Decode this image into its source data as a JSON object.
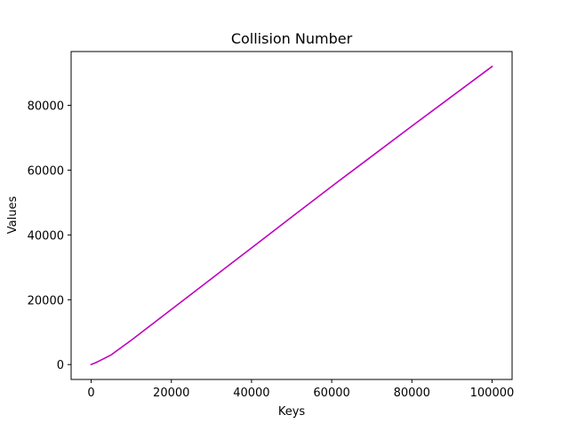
{
  "chart_data": {
    "type": "line",
    "title": "Collision Number",
    "xlabel": "Keys",
    "ylabel": "Values",
    "xlim": [
      -5000,
      105000
    ],
    "ylim": [
      -4600,
      96600
    ],
    "grid": false,
    "x_ticks": [
      0,
      20000,
      40000,
      60000,
      80000,
      100000
    ],
    "x_tick_labels": [
      "0",
      "20000",
      "40000",
      "60000",
      "80000",
      "100000"
    ],
    "y_ticks": [
      0,
      20000,
      40000,
      60000,
      80000
    ],
    "y_tick_labels": [
      "0",
      "20000",
      "40000",
      "60000",
      "80000"
    ],
    "series": [
      {
        "color": "#bf00bf",
        "x": [
          0,
          1000,
          2000,
          5000,
          10000,
          20000,
          30000,
          40000,
          50000,
          60000,
          70000,
          80000,
          90000,
          100000
        ],
        "y": [
          0,
          500,
          1100,
          3000,
          7500,
          17000,
          26500,
          36000,
          45500,
          55000,
          64300,
          73600,
          82800,
          92000
        ]
      }
    ]
  }
}
